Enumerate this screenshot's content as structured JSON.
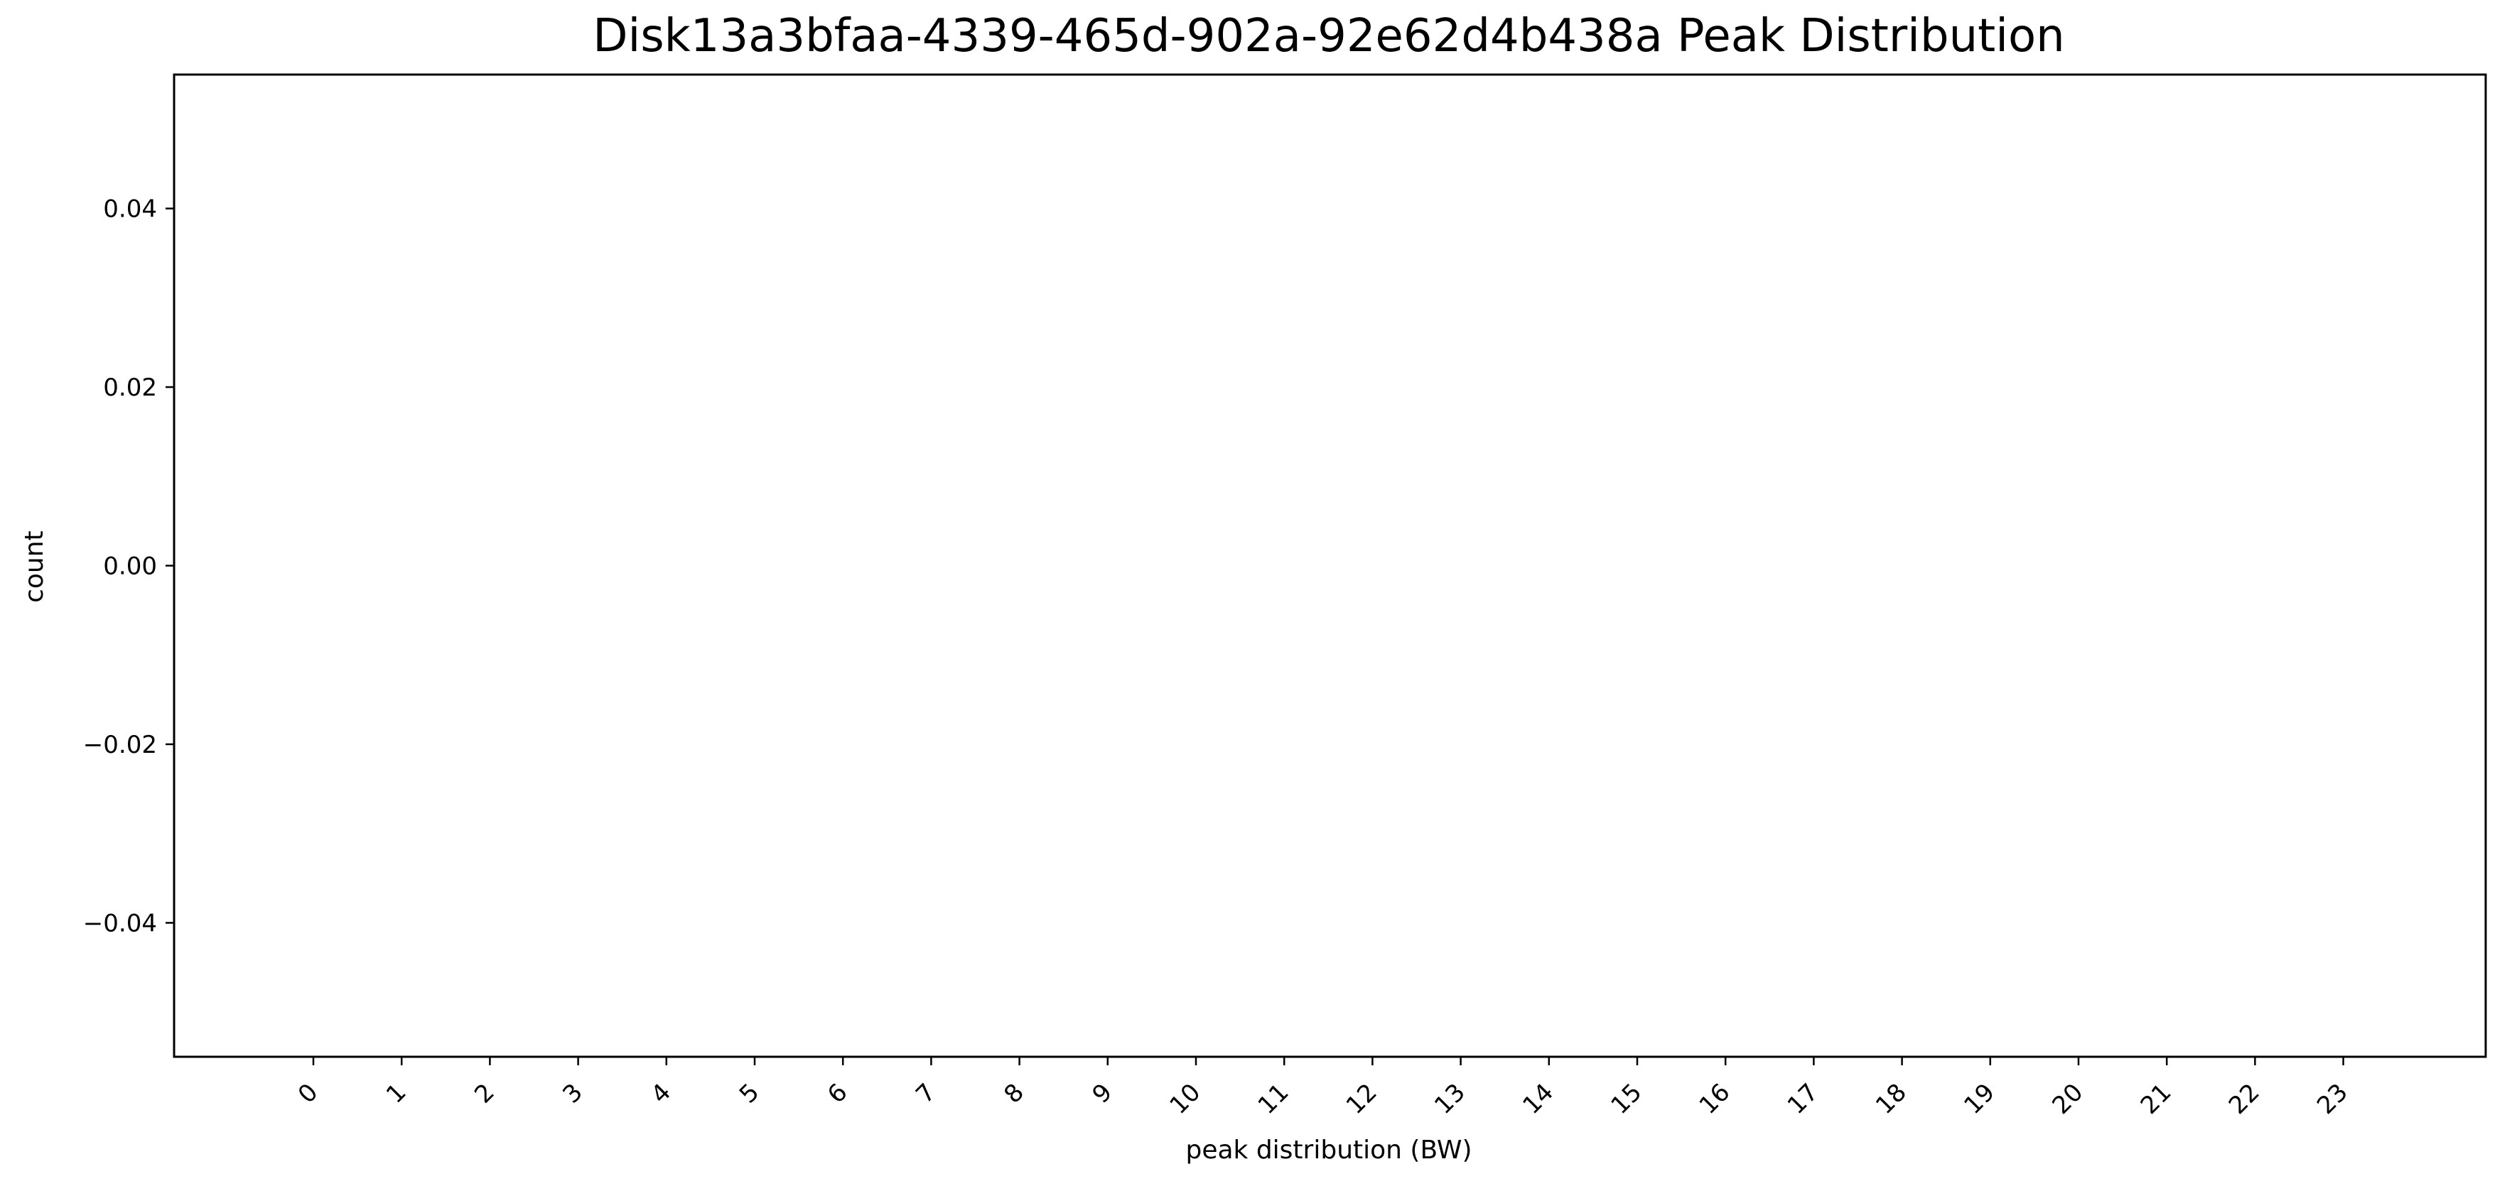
{
  "chart_data": {
    "type": "bar",
    "title": "Disk13a3bfaa-4339-465d-902a-92e62d4b438a Peak Distribution",
    "xlabel": "peak distribution (BW)",
    "ylabel": "count",
    "categories": [
      "0",
      "1",
      "2",
      "3",
      "4",
      "5",
      "6",
      "7",
      "8",
      "9",
      "10",
      "11",
      "12",
      "13",
      "14",
      "15",
      "16",
      "17",
      "18",
      "19",
      "20",
      "21",
      "22",
      "23"
    ],
    "values": [
      0,
      0,
      0,
      0,
      0,
      0,
      0,
      0,
      0,
      0,
      0,
      0,
      0,
      0,
      0,
      0,
      0,
      0,
      0,
      0,
      0,
      0,
      0,
      0
    ],
    "ylim": [
      -0.055,
      0.055
    ],
    "yticks": [
      -0.04,
      -0.02,
      0.0,
      0.02,
      0.04
    ],
    "ytick_labels": [
      "−0.04",
      "−0.02",
      "0.00",
      "0.02",
      "0.04"
    ],
    "grid": false,
    "legend": "none",
    "bar_edge_color": "#000000"
  }
}
